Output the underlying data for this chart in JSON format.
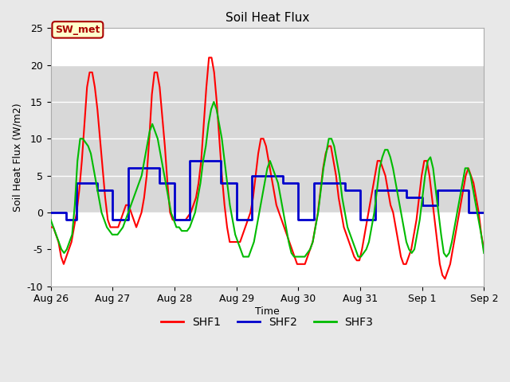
{
  "title": "Soil Heat Flux",
  "ylabel": "Soil Heat Flux (W/m2)",
  "xlabel": "Time",
  "ylim": [
    -10,
    25
  ],
  "background_color": "#e8e8e8",
  "plot_bg_color": "#e8e8e8",
  "inner_bg_color": "#ffffff",
  "shaded_region_color": "#d8d8d8",
  "shaded_region": [
    0,
    20
  ],
  "annotation_label": "SW_met",
  "annotation_bg": "#ffffcc",
  "annotation_border": "#aa0000",
  "annotation_text_color": "#aa0000",
  "line_colors": {
    "SHF1": "#ff0000",
    "SHF2": "#0000cc",
    "SHF3": "#00bb00"
  },
  "xtick_labels": [
    "Aug 26",
    "Aug 27",
    "Aug 28",
    "Aug 29",
    "Aug 30",
    "Aug 31",
    "Sep 1",
    "Sep 2"
  ],
  "xtick_positions": [
    0,
    24,
    48,
    72,
    96,
    120,
    144,
    168
  ],
  "ytick_positions": [
    -10,
    -5,
    0,
    5,
    10,
    15,
    20,
    25
  ],
  "shf1": [
    -2,
    -2,
    -3,
    -4,
    -6,
    -7,
    -6,
    -5,
    -4,
    -2,
    0,
    3,
    7,
    12,
    17,
    19,
    19,
    17,
    14,
    10,
    6,
    2,
    -1,
    -2,
    -2,
    -2,
    -2,
    -1,
    0,
    1,
    1,
    0,
    -1,
    -2,
    -1,
    0,
    2,
    5,
    10,
    16,
    19,
    19,
    17,
    13,
    9,
    4,
    0,
    -1,
    -1,
    -1,
    -1,
    -1,
    -1,
    -0.5,
    0,
    1,
    2,
    4,
    7,
    12,
    17,
    21,
    21,
    19,
    15,
    10,
    5,
    1,
    -2,
    -4,
    -4,
    -4,
    -4,
    -4,
    -3,
    -2,
    -1,
    0,
    2,
    5,
    8,
    10,
    10,
    9,
    7,
    5,
    3,
    1,
    0,
    -1,
    -2,
    -3,
    -4,
    -5,
    -6,
    -7,
    -7,
    -7,
    -7,
    -6,
    -5,
    -4,
    -2,
    0,
    3,
    6,
    8,
    9,
    9,
    7,
    5,
    2,
    0,
    -2,
    -3,
    -4,
    -5,
    -6,
    -6.5,
    -6.5,
    -5,
    -3,
    -1,
    1,
    3,
    5,
    7,
    7,
    6,
    5,
    3,
    1,
    0,
    -2,
    -4,
    -6,
    -7,
    -7,
    -6,
    -5,
    -3,
    -1,
    2,
    5,
    7,
    7,
    5,
    2,
    -1,
    -4,
    -7,
    -8.5,
    -9,
    -8,
    -7,
    -5,
    -3,
    -1,
    1,
    3,
    5,
    6,
    5,
    4,
    2,
    0,
    -3,
    -5
  ],
  "shf2_x": [
    0,
    6,
    6,
    10,
    10,
    18,
    18,
    24,
    24,
    30,
    30,
    42,
    42,
    48,
    48,
    54,
    54,
    66,
    66,
    72,
    72,
    78,
    78,
    90,
    90,
    96,
    96,
    102,
    102,
    114,
    114,
    120,
    120,
    126,
    126,
    138,
    138,
    144,
    144,
    150,
    150,
    162,
    162,
    168
  ],
  "shf2_y": [
    0,
    0,
    -1,
    -1,
    4,
    4,
    3,
    3,
    -1,
    -1,
    6,
    6,
    4,
    4,
    -1,
    -1,
    7,
    7,
    4,
    4,
    -1,
    -1,
    5,
    5,
    4,
    4,
    -1,
    -1,
    4,
    4,
    3,
    3,
    -1,
    -1,
    3,
    3,
    2,
    2,
    1,
    1,
    3,
    3,
    0,
    0
  ],
  "shf3": [
    -1,
    -2,
    -3,
    -4,
    -5,
    -5.5,
    -5,
    -4,
    -3,
    1,
    7,
    10,
    10,
    9.5,
    9,
    8,
    6,
    4,
    2,
    0,
    -1,
    -2,
    -2.5,
    -3,
    -3,
    -3,
    -2.5,
    -2,
    -1,
    0,
    1,
    2,
    3,
    4,
    5,
    7,
    9,
    11,
    12,
    11,
    10,
    8,
    6,
    4,
    2,
    0,
    -1,
    -2,
    -2,
    -2.5,
    -2.5,
    -2.5,
    -2,
    -1,
    0,
    2,
    4,
    7,
    9,
    12,
    14,
    15,
    14,
    12,
    10,
    7,
    4,
    1,
    -1,
    -3,
    -4,
    -5,
    -6,
    -6,
    -6,
    -5,
    -4,
    -2,
    0,
    2,
    4,
    6,
    7,
    6,
    5,
    4,
    2,
    0,
    -2,
    -4,
    -5.5,
    -6,
    -6,
    -6,
    -6,
    -6,
    -5.5,
    -5,
    -4,
    -2,
    0,
    3,
    6,
    8,
    10,
    10,
    9,
    7,
    5,
    2,
    0,
    -2,
    -3,
    -4,
    -5,
    -6,
    -6,
    -5.5,
    -5,
    -4,
    -2,
    0,
    3,
    6,
    7.5,
    8.5,
    8.5,
    7.5,
    6,
    4,
    2,
    0,
    -2,
    -4,
    -5,
    -5.5,
    -5,
    -3,
    -1,
    2,
    5,
    7,
    7.5,
    6,
    3,
    0,
    -3,
    -5.5,
    -6,
    -5.5,
    -4,
    -2,
    0,
    2,
    4,
    6,
    6,
    5,
    3,
    1,
    -1,
    -3,
    -5.5
  ]
}
